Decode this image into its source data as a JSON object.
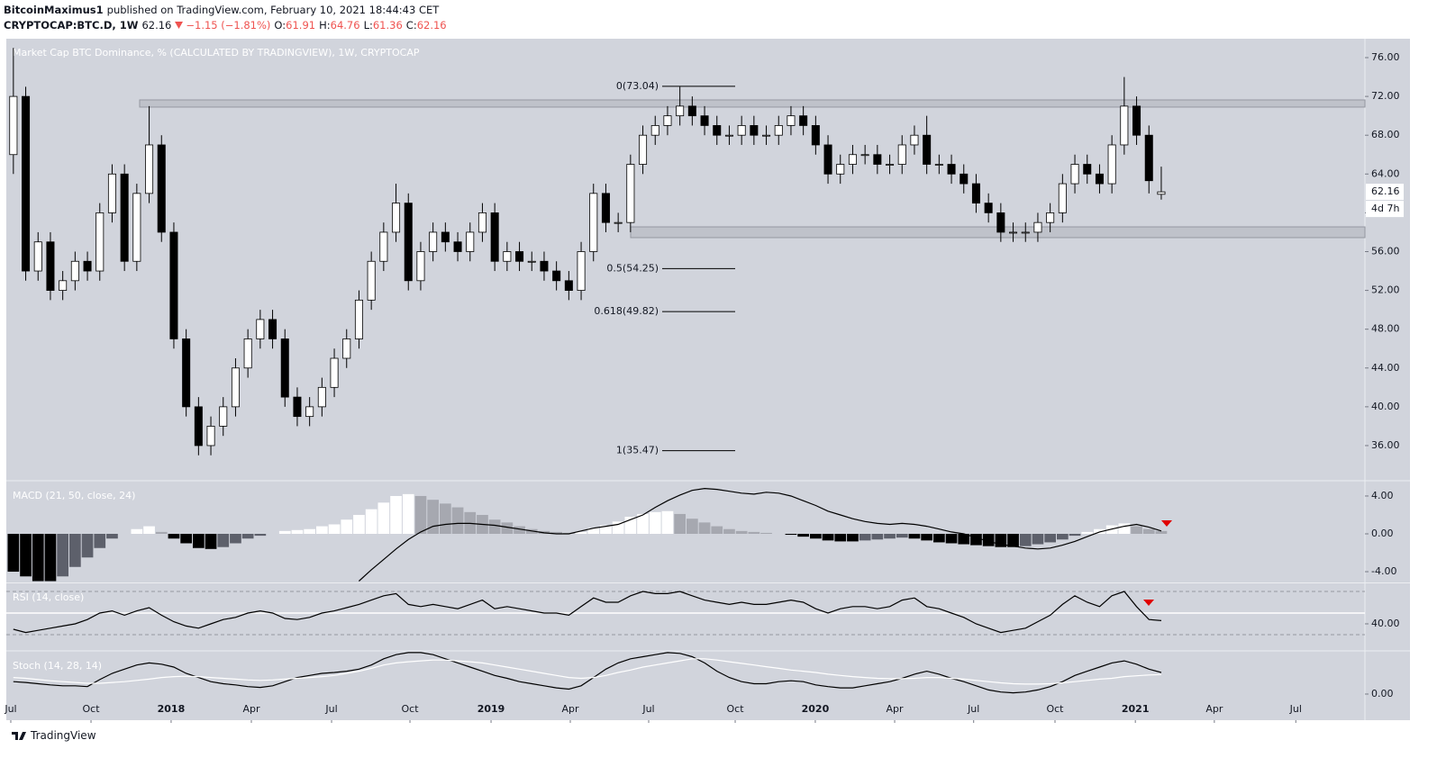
{
  "header": {
    "publisher": "BitcoinMaximus1",
    "published": "published on TradingView.com, February 10, 2021 18:44:43 CET",
    "symbol": "CRYPTOCAP:BTC.D, 1W",
    "last": "62.16",
    "change": "−1.15 (−1.81%)",
    "ohlc": [
      {
        "label": "O:",
        "value": "61.91"
      },
      {
        "label": "H:",
        "value": "64.76"
      },
      {
        "label": "L:",
        "value": "61.36"
      },
      {
        "label": "C:",
        "value": "62.16"
      }
    ]
  },
  "footer": {
    "brand": "TradingView"
  },
  "chart_data": [
    {
      "type": "candlestick",
      "title": "Market Cap BTC Dominance, % (CALCULATED BY TRADINGVIEW), 1W, CRYPTOCAP",
      "open": [
        66,
        72,
        54,
        57,
        52,
        53,
        55,
        54,
        60,
        64,
        55,
        62,
        67,
        58,
        47,
        40,
        36,
        38,
        40,
        44,
        47,
        49,
        47,
        41,
        39,
        40,
        42,
        45,
        47,
        51,
        55,
        58,
        61,
        53,
        56,
        58,
        57,
        56,
        58,
        60,
        55,
        56,
        55,
        55,
        54,
        53,
        52,
        56,
        62,
        59,
        59,
        65,
        68,
        69,
        70,
        71,
        70,
        69,
        68,
        68,
        69,
        68,
        68,
        69,
        70,
        69,
        67,
        64,
        65,
        66,
        66,
        65,
        65,
        67,
        68,
        65,
        65,
        64,
        63,
        61,
        60,
        58,
        58,
        58,
        59,
        60,
        63,
        65,
        64,
        63,
        67,
        71,
        68,
        61.91
      ],
      "high": [
        77,
        73,
        58,
        58,
        54,
        56,
        56,
        61,
        65,
        65,
        63,
        71,
        68,
        59,
        48,
        41,
        39,
        41,
        45,
        48,
        50,
        50,
        48,
        42,
        41,
        43,
        46,
        48,
        52,
        56,
        59,
        63,
        62,
        57,
        59,
        59,
        58,
        59,
        61,
        61,
        57,
        57,
        56,
        56,
        55,
        54,
        57,
        63,
        63,
        60,
        66,
        69,
        70,
        71,
        73,
        72,
        71,
        70,
        69,
        70,
        70,
        69,
        70,
        71,
        71,
        70,
        68,
        66,
        67,
        67,
        67,
        66,
        68,
        69,
        70,
        66,
        66,
        65,
        64,
        62,
        61,
        59,
        59,
        60,
        61,
        64,
        66,
        66,
        65,
        68,
        74,
        72,
        69,
        64.76
      ],
      "low": [
        64,
        53,
        53,
        51,
        51,
        52,
        53,
        53,
        59,
        54,
        54,
        61,
        57,
        46,
        39,
        35,
        35,
        37,
        39,
        43,
        46,
        46,
        40,
        38,
        38,
        39,
        41,
        44,
        46,
        50,
        54,
        57,
        52,
        52,
        55,
        56,
        55,
        55,
        57,
        54,
        54,
        54,
        54,
        53,
        52,
        51,
        51,
        55,
        58,
        58,
        58,
        64,
        67,
        68,
        69,
        69,
        68,
        67,
        67,
        67,
        67,
        67,
        67,
        68,
        68,
        66,
        63,
        63,
        64,
        65,
        64,
        64,
        64,
        66,
        64,
        64,
        63,
        62,
        60,
        59,
        57,
        57,
        57,
        57,
        58,
        59,
        62,
        63,
        62,
        62,
        66,
        67,
        62,
        61.36
      ],
      "close": [
        72,
        54,
        57,
        52,
        53,
        55,
        54,
        60,
        64,
        55,
        62,
        67,
        58,
        47,
        40,
        36,
        38,
        40,
        44,
        47,
        49,
        47,
        41,
        39,
        40,
        42,
        45,
        47,
        51,
        55,
        58,
        61,
        53,
        56,
        58,
        57,
        56,
        58,
        60,
        55,
        56,
        55,
        55,
        54,
        53,
        52,
        56,
        62,
        59,
        59,
        65,
        68,
        69,
        70,
        71,
        70,
        69,
        68,
        68,
        69,
        68,
        68,
        69,
        70,
        69,
        67,
        64,
        65,
        66,
        66,
        65,
        65,
        67,
        68,
        65,
        65,
        64,
        63,
        61,
        60,
        58,
        58,
        58,
        59,
        60,
        63,
        65,
        64,
        63,
        67,
        71,
        68,
        63.31,
        62.16
      ],
      "up_color": "#ffffff",
      "down_color": "#000000",
      "xlim": [
        -0.5,
        109.5
      ],
      "xticks": [
        {
          "value": -0.21,
          "label": "Jul"
        },
        {
          "value": 6.29,
          "label": "Oct"
        },
        {
          "value": 12.78,
          "label": "2018"
        },
        {
          "value": 19.28,
          "label": "Apr"
        },
        {
          "value": 25.78,
          "label": "Jul"
        },
        {
          "value": 32.13,
          "label": "Oct"
        },
        {
          "value": 38.7,
          "label": "2019"
        },
        {
          "value": 45.12,
          "label": "Apr"
        },
        {
          "value": 51.47,
          "label": "Jul"
        },
        {
          "value": 58.48,
          "label": "Oct"
        },
        {
          "value": 64.97,
          "label": "2020"
        },
        {
          "value": 71.4,
          "label": "Apr"
        },
        {
          "value": 77.8,
          "label": "Jul"
        },
        {
          "value": 84.39,
          "label": "Oct"
        },
        {
          "value": 90.9,
          "label": "2021"
        },
        {
          "value": 97.3,
          "label": "Apr"
        },
        {
          "value": 103.9,
          "label": "Jul"
        }
      ],
      "ylim": [
        32.47,
        77.95
      ],
      "yticks": [
        {
          "value": 36,
          "label": "36.00"
        },
        {
          "value": 40,
          "label": "40.00"
        },
        {
          "value": 44,
          "label": "44.00"
        },
        {
          "value": 48,
          "label": "48.00"
        },
        {
          "value": 52,
          "label": "52.00"
        },
        {
          "value": 56,
          "label": "56.00"
        },
        {
          "value": 60,
          "label": "60.00"
        },
        {
          "value": 64,
          "label": "64.00"
        },
        {
          "value": 68,
          "label": "68.00"
        },
        {
          "value": 72,
          "label": "72.00"
        },
        {
          "value": 76,
          "label": "76.00"
        }
      ],
      "zones": [
        [
          70.9,
          71.64
        ],
        [
          57.44,
          58.55
        ]
      ],
      "fib_levels": [
        {
          "label": "0(73.04)",
          "value": 73.04
        },
        {
          "label": "0.5(54.25)",
          "value": 54.25
        },
        {
          "label": "0.618(49.82)",
          "value": 49.82
        },
        {
          "label": "1(35.47)",
          "value": 35.47
        }
      ],
      "last_price": {
        "value": 62.16,
        "label": "62.16"
      },
      "countdown": "4d 7h"
    },
    {
      "type": "macd",
      "title": "MACD (21, 50, close, 24)",
      "histogram": [
        -4,
        -4.5,
        -5,
        -5,
        -4.5,
        -3.5,
        -2.5,
        -1.5,
        -0.5,
        0,
        0.5,
        0.8,
        0.2,
        -0.5,
        -1,
        -1.5,
        -1.6,
        -1.4,
        -1,
        -0.5,
        -0.2,
        0,
        0.3,
        0.4,
        0.5,
        0.8,
        1,
        1.5,
        2,
        2.6,
        3.3,
        4,
        4.2,
        4,
        3.6,
        3.2,
        2.8,
        2.3,
        2,
        1.5,
        1.2,
        0.8,
        0.5,
        0.3,
        0.2,
        0.1,
        0.2,
        0.6,
        0.9,
        1.3,
        1.8,
        2.1,
        2.3,
        2.4,
        2.1,
        1.6,
        1.2,
        0.8,
        0.5,
        0.3,
        0.2,
        0.1,
        0,
        -0.1,
        -0.3,
        -0.5,
        -0.7,
        -0.8,
        -0.8,
        -0.7,
        -0.6,
        -0.5,
        -0.4,
        -0.5,
        -0.7,
        -0.9,
        -1,
        -1.1,
        -1.2,
        -1.3,
        -1.4,
        -1.4,
        -1.3,
        -1.1,
        -0.9,
        -0.6,
        -0.2,
        0.2,
        0.5,
        0.9,
        1.1,
        0.8,
        0.5,
        0.3
      ],
      "macd": [
        null,
        null,
        null,
        null,
        null,
        null,
        null,
        null,
        null,
        null,
        null,
        null,
        null,
        null,
        null,
        null,
        null,
        null,
        null,
        null,
        null,
        null,
        null,
        null,
        null,
        null,
        null,
        null,
        -5,
        -3.8,
        -2.7,
        -1.6,
        -0.6,
        0.2,
        0.8,
        1,
        1.1,
        1.1,
        1,
        0.9,
        0.7,
        0.5,
        0.3,
        0.1,
        0,
        0,
        0.3,
        0.6,
        0.8,
        1,
        1.5,
        2,
        2.8,
        3.5,
        4.1,
        4.6,
        4.8,
        4.7,
        4.5,
        4.3,
        4.2,
        4.4,
        4.3,
        4,
        3.5,
        3,
        2.4,
        2,
        1.6,
        1.3,
        1.1,
        1,
        1.1,
        1,
        0.8,
        0.5,
        0.2,
        0,
        -0.4,
        -0.8,
        -1.1,
        -1.3,
        -1.5,
        -1.6,
        -1.5,
        -1.2,
        -0.8,
        -0.3,
        0.2,
        0.5,
        0.8,
        1,
        0.7,
        0.3
      ],
      "macd_color": "#000000",
      "colors": {
        "pos_rising": "#ffffff",
        "pos_falling": "#a6a8b0",
        "neg_falling": "#000000",
        "neg_rising": "#5d606b"
      },
      "ylim": [
        -5.14,
        5.52
      ],
      "yticks": [
        {
          "value": 4,
          "label": "4.00"
        },
        {
          "value": 0,
          "label": "0.00"
        },
        {
          "value": -4,
          "label": "-4.00"
        }
      ]
    },
    {
      "type": "line",
      "title": "RSI (14, close)",
      "series": [
        {
          "color": "#000000",
          "values": [
            35,
            32,
            34,
            36,
            38,
            40,
            44,
            50,
            52,
            48,
            52,
            55,
            48,
            42,
            38,
            36,
            40,
            44,
            46,
            50,
            52,
            50,
            45,
            44,
            46,
            50,
            52,
            55,
            58,
            62,
            66,
            68,
            58,
            56,
            58,
            56,
            54,
            58,
            62,
            54,
            56,
            54,
            52,
            50,
            50,
            48,
            56,
            64,
            60,
            60,
            66,
            70,
            68,
            68,
            70,
            66,
            62,
            60,
            58,
            60,
            58,
            58,
            60,
            62,
            60,
            54,
            50,
            54,
            56,
            56,
            54,
            56,
            62,
            64,
            56,
            54,
            50,
            46,
            40,
            36,
            32,
            34,
            36,
            42,
            48,
            58,
            66,
            60,
            56,
            66,
            70,
            56,
            44,
            43
          ]
        }
      ],
      "bands": [
        30,
        50,
        70
      ],
      "ylim": [
        15.8,
        77.5
      ],
      "yticks": [
        {
          "value": 40,
          "label": "40.00"
        }
      ]
    },
    {
      "type": "line",
      "title": "Stoch (14, 28, 14)",
      "series": [
        {
          "color": "#000000",
          "values": [
            30,
            28,
            25,
            22,
            20,
            20,
            18,
            35,
            50,
            60,
            70,
            75,
            72,
            65,
            50,
            40,
            30,
            25,
            22,
            18,
            16,
            20,
            30,
            40,
            45,
            50,
            52,
            55,
            60,
            70,
            85,
            95,
            100,
            100,
            95,
            85,
            75,
            65,
            55,
            45,
            38,
            30,
            25,
            20,
            15,
            12,
            20,
            40,
            60,
            75,
            85,
            90,
            95,
            100,
            98,
            90,
            75,
            55,
            40,
            30,
            25,
            25,
            30,
            32,
            30,
            22,
            18,
            15,
            15,
            20,
            25,
            30,
            38,
            48,
            55,
            48,
            38,
            30,
            20,
            10,
            5,
            3,
            5,
            10,
            18,
            30,
            45,
            55,
            65,
            75,
            80,
            72,
            60,
            52
          ]
        },
        {
          "color": "#ffffff",
          "values": [
            40,
            38,
            35,
            32,
            30,
            28,
            26,
            26,
            28,
            30,
            33,
            36,
            40,
            42,
            43,
            42,
            40,
            38,
            36,
            34,
            33,
            34,
            36,
            38,
            40,
            42,
            45,
            50,
            55,
            62,
            70,
            75,
            78,
            80,
            82,
            82,
            80,
            78,
            75,
            70,
            65,
            60,
            55,
            50,
            45,
            40,
            38,
            40,
            45,
            52,
            58,
            65,
            70,
            75,
            80,
            85,
            85,
            82,
            78,
            74,
            70,
            66,
            62,
            58,
            55,
            52,
            48,
            45,
            42,
            40,
            38,
            37,
            37,
            38,
            40,
            40,
            38,
            36,
            33,
            30,
            27,
            25,
            24,
            24,
            25,
            27,
            30,
            33,
            36,
            38,
            42,
            44,
            46,
            47
          ]
        }
      ],
      "ylim": [
        -63,
        102
      ],
      "yticks": [
        {
          "value": 0,
          "label": "0.00"
        }
      ]
    }
  ]
}
